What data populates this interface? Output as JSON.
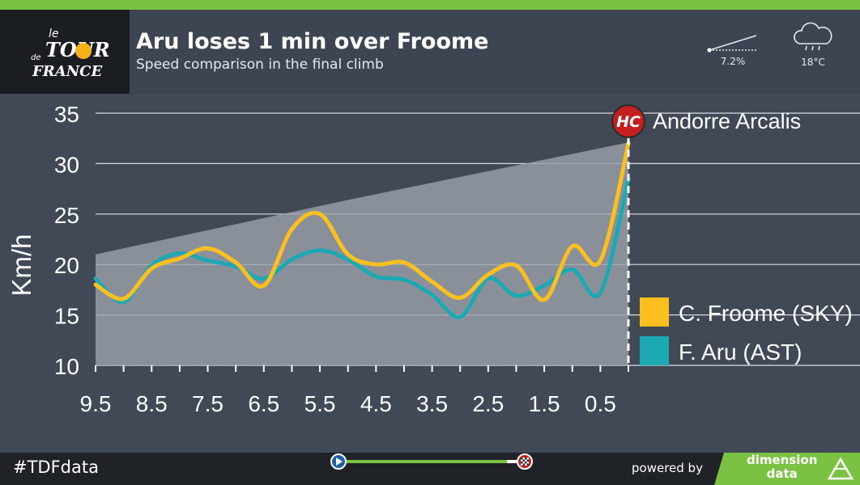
{
  "header": {
    "logo": {
      "line1": "le",
      "line2": "TOUR",
      "line3": "de",
      "line4": "FRANCE"
    },
    "title": "Aru loses 1 min over Froome",
    "subtitle": "Speed comparison in the final climb",
    "gradient": {
      "value": "7.2%",
      "icon": "slope-icon"
    },
    "weather": {
      "value": "18°C",
      "icon": "rain-cloud-icon"
    }
  },
  "chart_data": {
    "type": "line",
    "ylabel": "Km/h",
    "xlabel": "",
    "ylim": [
      10,
      35
    ],
    "yticks": [
      10,
      15,
      20,
      25,
      30,
      35
    ],
    "xlim": [
      9.5,
      0
    ],
    "xticks": [
      "9.5",
      "8.5",
      "7.5",
      "6.5",
      "5.5",
      "4.5",
      "3.5",
      "2.5",
      "1.5",
      "0.5"
    ],
    "grid": true,
    "legend": "right",
    "summit": {
      "badge": "HC",
      "name": "Andorre Arcalis"
    },
    "profile": [
      [
        9.5,
        21.0
      ],
      [
        5.0,
        26.4
      ],
      [
        0.0,
        32.1
      ]
    ],
    "series": [
      {
        "name": "C. Froome (SKY)",
        "color": "#fcc01e",
        "points": [
          [
            9.5,
            18.0
          ],
          [
            9.0,
            16.6
          ],
          [
            8.5,
            19.6
          ],
          [
            8.0,
            20.6
          ],
          [
            7.5,
            21.6
          ],
          [
            7.0,
            20.2
          ],
          [
            6.5,
            17.9
          ],
          [
            6.0,
            23.5
          ],
          [
            5.5,
            25.0
          ],
          [
            5.0,
            21.0
          ],
          [
            4.5,
            20.0
          ],
          [
            4.0,
            20.2
          ],
          [
            3.5,
            18.3
          ],
          [
            3.0,
            16.7
          ],
          [
            2.5,
            19.0
          ],
          [
            2.0,
            19.9
          ],
          [
            1.5,
            16.5
          ],
          [
            1.0,
            21.8
          ],
          [
            0.5,
            20.4
          ],
          [
            0.0,
            32.0
          ]
        ]
      },
      {
        "name": "F. Aru (AST)",
        "color": "#1da9b4",
        "points": [
          [
            9.5,
            18.6
          ],
          [
            9.0,
            16.3
          ],
          [
            8.5,
            19.9
          ],
          [
            8.0,
            21.1
          ],
          [
            7.5,
            20.4
          ],
          [
            7.0,
            19.8
          ],
          [
            6.5,
            18.6
          ],
          [
            6.0,
            20.5
          ],
          [
            5.5,
            21.4
          ],
          [
            5.0,
            20.5
          ],
          [
            4.5,
            18.8
          ],
          [
            4.0,
            18.5
          ],
          [
            3.5,
            17.0
          ],
          [
            3.0,
            14.8
          ],
          [
            2.5,
            18.6
          ],
          [
            2.0,
            16.9
          ],
          [
            1.5,
            17.9
          ],
          [
            1.0,
            19.5
          ],
          [
            0.5,
            17.2
          ],
          [
            0.0,
            28.5
          ]
        ]
      }
    ],
    "colors": {
      "grid": "#d9dde3",
      "profile": "#8a909a",
      "background": "#414956"
    }
  },
  "footer": {
    "hashtag": "#TDFdata",
    "powered_by": "powered by",
    "sponsor_line1": "dimension",
    "sponsor_line2": "data"
  }
}
